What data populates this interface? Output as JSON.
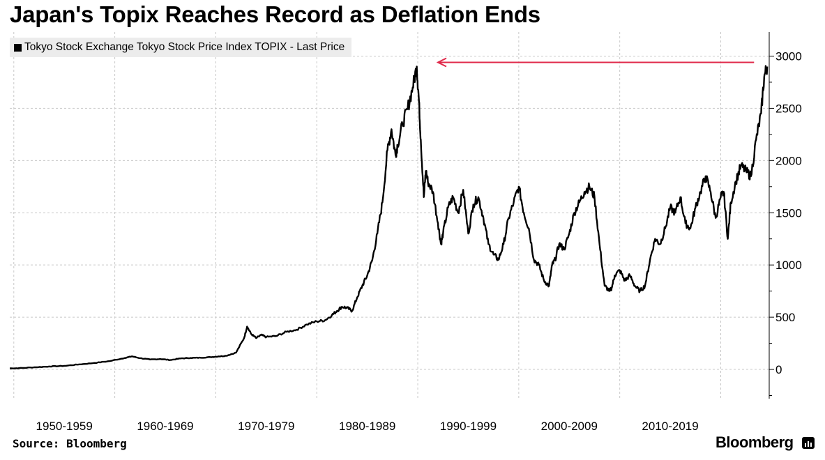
{
  "title": "Japan's Topix Reaches Record as Deflation Ends",
  "source": "Source: Bloomberg",
  "brand": "Bloomberg",
  "brand_icon": "bloomberg-terminal-icon",
  "colors": {
    "series": "#000000",
    "annotation_arrow": "#e0294a",
    "grid": "#c8c8c8",
    "legend_bg": "#ececec"
  },
  "chart_data": {
    "type": "line",
    "title": "Japan's Topix Reaches Record as Deflation Ends",
    "legend": [
      {
        "label": "Tokyo Stock Exchange Tokyo Stock Price Index TOPIX - Last Price",
        "placement": "top-left"
      }
    ],
    "x_tick_labels": [
      "1950-1959",
      "1960-1969",
      "1970-1979",
      "1980-1989",
      "1990-1999",
      "2000-2009",
      "2010-2019"
    ],
    "y_ticks": [
      0,
      500,
      1000,
      1500,
      2000,
      2500,
      3000
    ],
    "y_tick_labels": [
      "0",
      "500",
      "1000",
      "1500",
      "2000",
      "2500",
      "3000"
    ],
    "ylim": [
      -280,
      3230
    ],
    "xlim": [
      1949.6,
      2024.8
    ],
    "y_axis_side": "right",
    "grid": true,
    "annotations": [
      {
        "type": "arrow",
        "description": "horizontal arrow pointing left from current level to 1989 peak",
        "y": 2940,
        "x_from": 2023.3,
        "x_to": 1992.0
      }
    ],
    "series": [
      {
        "name": "Tokyo Stock Exchange Tokyo Stock Price Index TOPIX - Last Price",
        "x": [
          1949.6,
          1950.5,
          1952,
          1953.5,
          1955,
          1956.5,
          1958,
          1959.5,
          1961,
          1961.7,
          1962.5,
          1963.5,
          1964.5,
          1965.5,
          1966.5,
          1967.5,
          1968.5,
          1969.5,
          1970.3,
          1971,
          1972,
          1972.8,
          1973.1,
          1973.5,
          1974,
          1974.5,
          1975,
          1976,
          1977,
          1978,
          1979,
          1980,
          1980.8,
          1981.5,
          1982,
          1982.5,
          1983,
          1983.5,
          1984,
          1984.5,
          1985,
          1985.5,
          1986,
          1986.5,
          1987,
          1987.4,
          1987.8,
          1988,
          1988.5,
          1989,
          1989.5,
          1989.9,
          1990.1,
          1990.3,
          1990.6,
          1990.8,
          1991,
          1991.5,
          1992,
          1992.3,
          1992.5,
          1993,
          1993.5,
          1994,
          1994.5,
          1995,
          1995.5,
          1996,
          1996.5,
          1997,
          1997.5,
          1998,
          1998.5,
          1999,
          1999.5,
          2000,
          2000.5,
          2001,
          2001.5,
          2002,
          2002.5,
          2003,
          2003.3,
          2003.6,
          2004,
          2004.5,
          2005,
          2005.5,
          2006,
          2006.5,
          2007,
          2007.5,
          2008,
          2008.5,
          2009,
          2009.2,
          2009.5,
          2010,
          2010.5,
          2011,
          2011.5,
          2012,
          2012.5,
          2013,
          2013.5,
          2014,
          2014.5,
          2015,
          2015.5,
          2016,
          2016.5,
          2017,
          2017.5,
          2018,
          2018.5,
          2019,
          2019.5,
          2020,
          2020.3,
          2020.7,
          2021,
          2021.5,
          2022,
          2022.5,
          2023,
          2023.5,
          2024,
          2024.3,
          2024.6
        ],
        "y": [
          10,
          12,
          20,
          28,
          34,
          48,
          62,
          80,
          110,
          125,
          108,
          95,
          100,
          90,
          105,
          110,
          112,
          118,
          125,
          130,
          160,
          300,
          410,
          340,
          300,
          330,
          310,
          320,
          360,
          380,
          430,
          460,
          470,
          520,
          560,
          600,
          590,
          560,
          690,
          800,
          900,
          1050,
          1300,
          1600,
          2100,
          2300,
          2050,
          2150,
          2350,
          2500,
          2700,
          2900,
          2600,
          2200,
          1650,
          1900,
          1800,
          1700,
          1400,
          1200,
          1300,
          1550,
          1650,
          1500,
          1720,
          1300,
          1580,
          1650,
          1450,
          1200,
          1100,
          1050,
          1200,
          1450,
          1600,
          1750,
          1500,
          1350,
          1050,
          1000,
          850,
          800,
          1000,
          1050,
          1200,
          1150,
          1300,
          1500,
          1600,
          1700,
          1750,
          1650,
          1200,
          800,
          750,
          780,
          900,
          950,
          850,
          900,
          800,
          750,
          800,
          1050,
          1250,
          1200,
          1350,
          1550,
          1500,
          1650,
          1400,
          1350,
          1550,
          1700,
          1850,
          1700,
          1450,
          1650,
          1700,
          1250,
          1600,
          1800,
          1950,
          1900,
          1850,
          2200,
          2450,
          2800,
          2900
        ]
      }
    ]
  }
}
